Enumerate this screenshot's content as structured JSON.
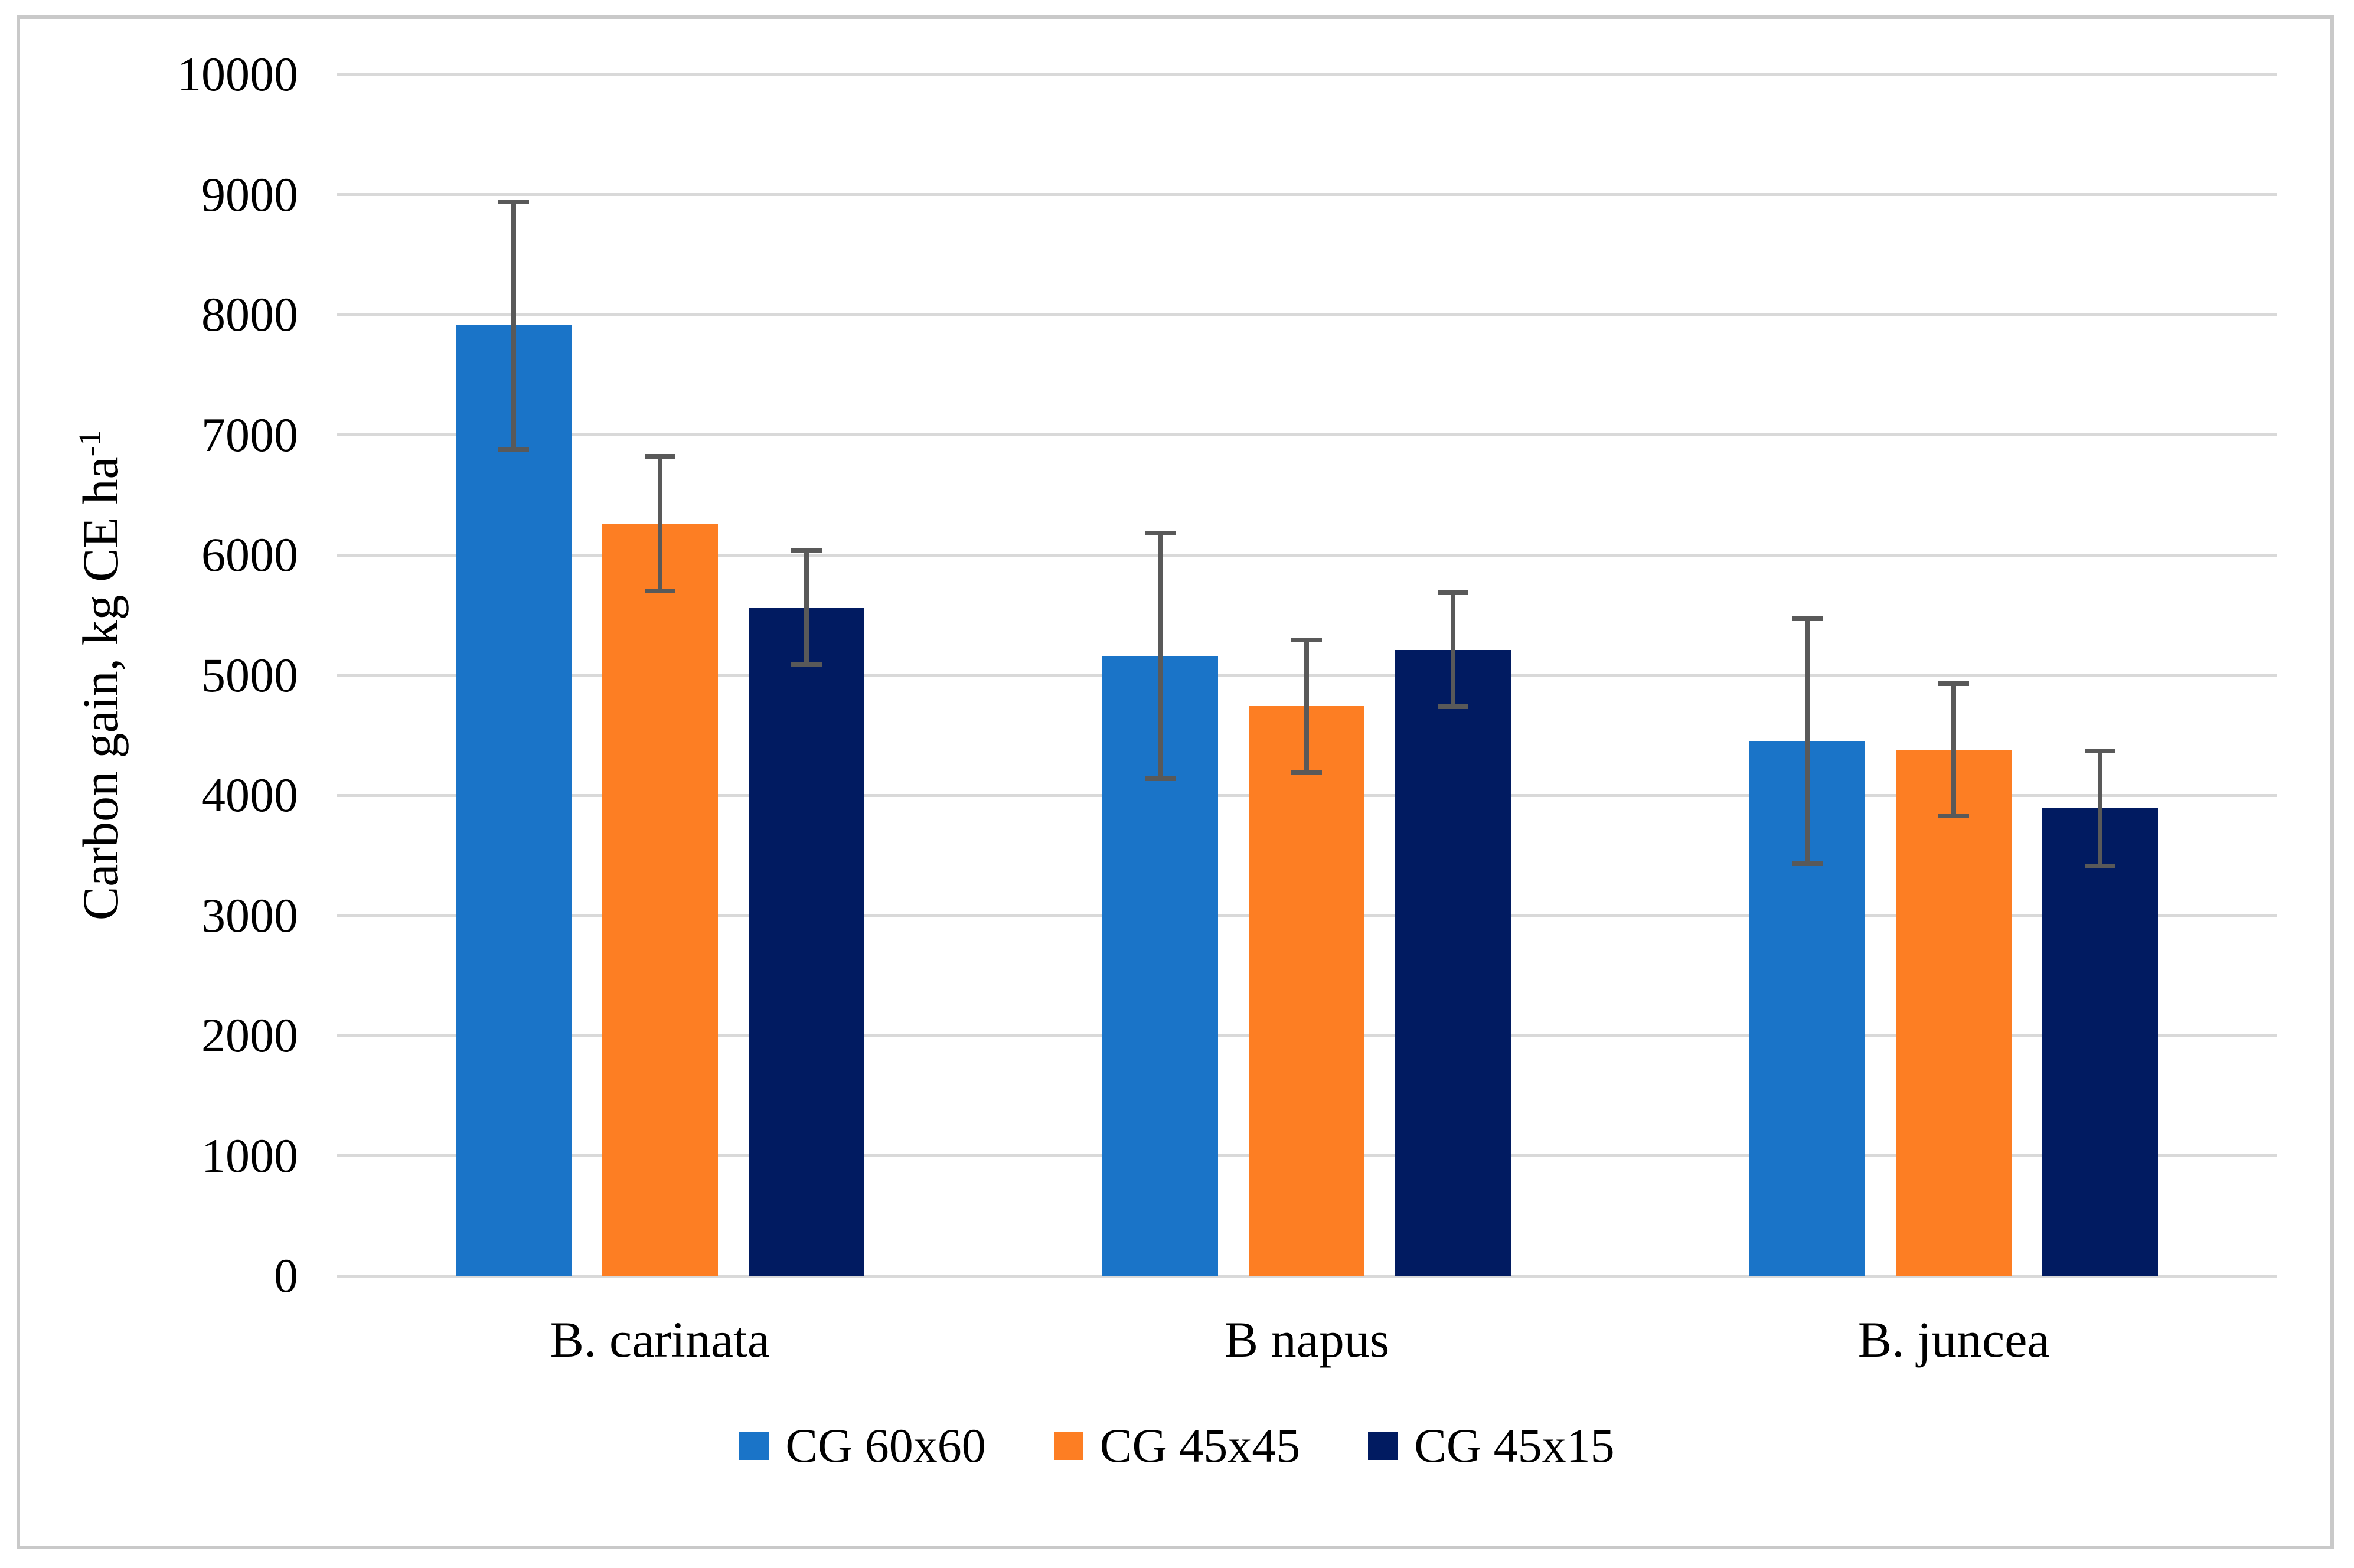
{
  "figure": {
    "background_color": "#ffffff",
    "border_color": "#c9c9c9"
  },
  "chart_data": {
    "type": "bar",
    "title": "",
    "ylabel_main": "Carbon gain, kg CE ha",
    "ylabel_superscript": "-1",
    "xlabel": "",
    "categories": [
      "B. carinata",
      "B napus",
      "B. juncea"
    ],
    "series": [
      {
        "name": "CG 60x60",
        "color": "#1a74c8",
        "values": [
          7910,
          5160,
          4450
        ],
        "errors": [
          1050,
          1040,
          1040
        ]
      },
      {
        "name": "CG 45x45",
        "color": "#fd7e23",
        "values": [
          6260,
          4740,
          4380
        ],
        "errors": [
          580,
          570,
          570
        ]
      },
      {
        "name": "CG 45x15",
        "color": "#011b61",
        "values": [
          5560,
          5210,
          3890
        ],
        "errors": [
          495,
          495,
          500
        ]
      }
    ],
    "ylim": [
      0,
      10000
    ],
    "yticks": [
      0,
      1000,
      2000,
      3000,
      4000,
      5000,
      6000,
      7000,
      8000,
      9000,
      10000
    ],
    "grid": true,
    "gridline_color": "#d9d9d9",
    "error_bar_color": "#595959",
    "legend_position": "bottom"
  }
}
